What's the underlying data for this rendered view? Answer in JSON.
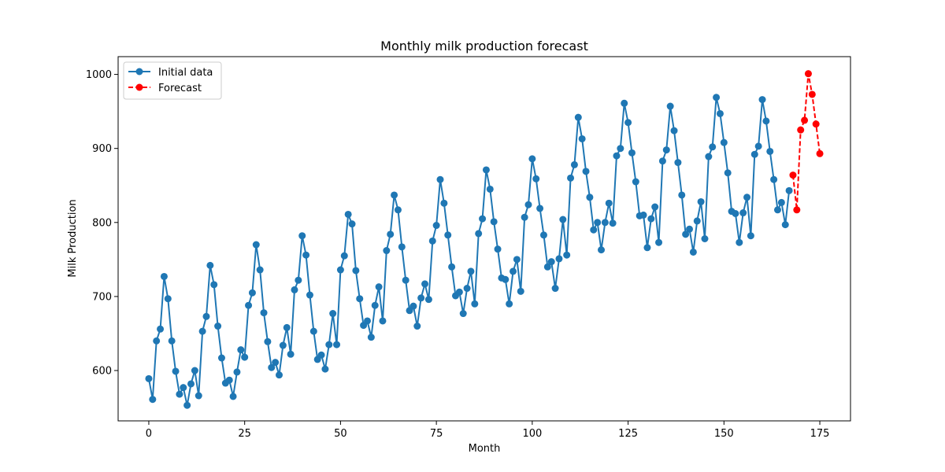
{
  "chart_data": {
    "type": "line",
    "title": "Monthly milk production forecast",
    "xlabel": "Month",
    "ylabel": "Milk Production",
    "xlim": [
      -8,
      183
    ],
    "ylim": [
      532,
      1024
    ],
    "xticks": [
      0,
      25,
      50,
      75,
      100,
      125,
      150,
      175
    ],
    "yticks": [
      600,
      700,
      800,
      900,
      1000
    ],
    "grid": false,
    "legend_position": "top-left",
    "series": [
      {
        "name": "Initial data",
        "color": "#1f77b4",
        "line_style": "solid",
        "marker": "circle",
        "x_start": 0,
        "values": [
          589,
          561,
          640,
          656,
          727,
          697,
          640,
          599,
          568,
          577,
          553,
          582,
          600,
          566,
          653,
          673,
          742,
          716,
          660,
          617,
          583,
          587,
          565,
          598,
          628,
          618,
          688,
          705,
          770,
          736,
          678,
          639,
          604,
          611,
          594,
          634,
          658,
          622,
          709,
          722,
          782,
          756,
          702,
          653,
          615,
          621,
          602,
          635,
          677,
          635,
          736,
          755,
          811,
          798,
          735,
          697,
          661,
          667,
          645,
          688,
          713,
          667,
          762,
          784,
          837,
          817,
          767,
          722,
          681,
          687,
          660,
          698,
          717,
          696,
          775,
          796,
          858,
          826,
          783,
          740,
          701,
          706,
          677,
          711,
          734,
          690,
          785,
          805,
          871,
          845,
          801,
          764,
          725,
          723,
          690,
          734,
          750,
          707,
          807,
          824,
          886,
          859,
          819,
          783,
          740,
          747,
          711,
          751,
          804,
          756,
          860,
          878,
          942,
          913,
          869,
          834,
          790,
          800,
          763,
          800,
          826,
          799,
          890,
          900,
          961,
          935,
          894,
          855,
          809,
          810,
          766,
          805,
          821,
          773,
          883,
          898,
          957,
          924,
          881,
          837,
          784,
          791,
          760,
          802,
          828,
          778,
          889,
          902,
          969,
          947,
          908,
          867,
          815,
          812,
          773,
          813,
          834,
          782,
          892,
          903,
          966,
          937,
          896,
          858,
          817,
          827,
          797,
          843
        ]
      },
      {
        "name": "Forecast",
        "color": "#ff0000",
        "line_style": "dashed",
        "marker": "circle",
        "x_start": 168,
        "values": [
          864,
          817,
          925,
          938,
          1001,
          973,
          933,
          893
        ]
      }
    ]
  }
}
